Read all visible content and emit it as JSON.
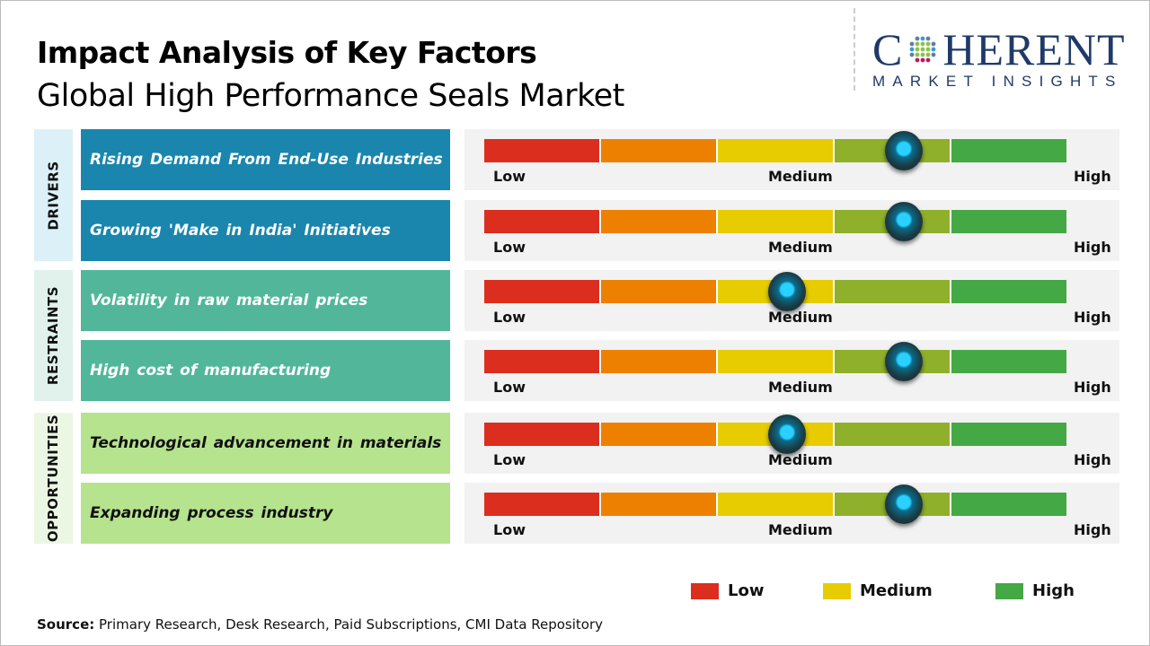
{
  "title": "Impact Analysis of Key Factors",
  "subtitle": "Global High Performance Seals Market",
  "logo": {
    "main": "COHERENT",
    "tagline": "MARKET INSIGHTS"
  },
  "scale_labels": {
    "low": "Low",
    "medium": "Medium",
    "high": "High"
  },
  "scale_colors": [
    "#dc2e1e",
    "#ee8000",
    "#e6cc00",
    "#8fb02a",
    "#44a845"
  ],
  "groups": [
    {
      "label": "DRIVERS",
      "color": "#1a86ad",
      "bg": "#dcf0f8",
      "text_color": "#ffffff",
      "factors": [
        {
          "label": "Rising Demand From End-Use Industries",
          "level": 0.72
        },
        {
          "label": "Growing 'Make in India' Initiatives",
          "level": 0.72
        }
      ]
    },
    {
      "label": "RESTRAINTS",
      "color": "#52b79a",
      "bg": "#e1f2ed",
      "text_color": "#ffffff",
      "factors": [
        {
          "label": "Volatility in raw material prices",
          "level": 0.52
        },
        {
          "label": "High cost of manufacturing",
          "level": 0.72
        }
      ]
    },
    {
      "label": "OPPORTUNITIES",
      "color": "#b6e38e",
      "bg": "#ecf7e3",
      "text_color": "#111111",
      "factors": [
        {
          "label": "Technological advancement in materials",
          "level": 0.52
        },
        {
          "label": "Expanding process industry",
          "level": 0.72
        }
      ]
    }
  ],
  "legend": [
    {
      "label": "Low",
      "color": "#dc2e1e"
    },
    {
      "label": "Medium",
      "color": "#e6cc00"
    },
    {
      "label": "High",
      "color": "#44a845"
    }
  ],
  "source": {
    "prefix": "Source:",
    "text": " Primary Research, Desk Research, Paid Subscriptions, CMI Data Repository"
  }
}
